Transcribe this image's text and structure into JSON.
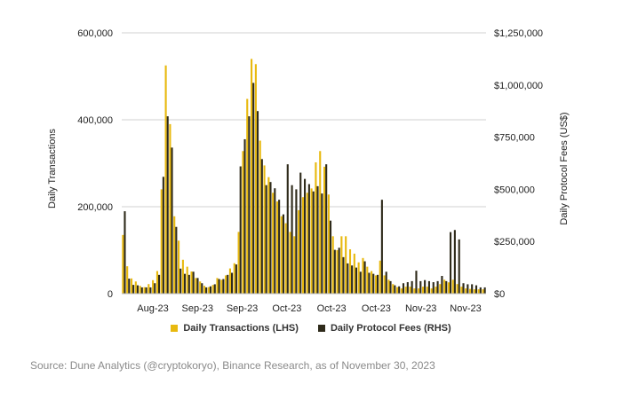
{
  "chart_data": {
    "type": "bar",
    "ylabel_left": "Daily Transactions",
    "ylabel_right": "Daily Protocol Fees (US$)",
    "left_axis": {
      "min": 0,
      "max": 600000,
      "ticks": [
        "0",
        "200,000",
        "400,000",
        "600,000"
      ]
    },
    "right_axis": {
      "min": 0,
      "max": 1250000,
      "ticks": [
        "$0",
        "$250,000",
        "$500,000",
        "$750,000",
        "$1,000,000",
        "$1,250,000"
      ]
    },
    "x_tick_labels": [
      "Aug-23",
      "Sep-23",
      "Sep-23",
      "Oct-23",
      "Oct-23",
      "Oct-23",
      "Nov-23",
      "Nov-23"
    ],
    "grid": "horizontal",
    "legend_position": "bottom",
    "series": [
      {
        "name": "Daily Transactions (LHS)",
        "color": "#E8B90F",
        "values": [
          135000,
          63000,
          35000,
          28000,
          18000,
          15000,
          22000,
          31000,
          52000,
          240000,
          525000,
          390000,
          178000,
          122000,
          78000,
          62000,
          51000,
          36000,
          28000,
          18000,
          15000,
          20000,
          36000,
          32000,
          42000,
          58000,
          70000,
          142000,
          328000,
          448000,
          540000,
          528000,
          352000,
          295000,
          268000,
          232000,
          212000,
          178000,
          162000,
          142000,
          132000,
          192000,
          222000,
          232000,
          242000,
          302000,
          328000,
          292000,
          228000,
          132000,
          100000,
          132000,
          132000,
          102000,
          92000,
          72000,
          82000,
          62000,
          52000,
          42000,
          76000,
          42000,
          32000,
          22000,
          15000,
          12000,
          16000,
          16000,
          12000,
          12000,
          16000,
          16000,
          12000,
          16000,
          22000,
          32000,
          26000,
          32000,
          22000,
          16000,
          12000,
          11000,
          10000,
          10000,
          10000
        ]
      },
      {
        "name": "Daily Protocol Fees (RHS)",
        "color": "#2E2A1A",
        "values": [
          395000,
          72000,
          42000,
          40000,
          30000,
          30000,
          30000,
          50000,
          90000,
          560000,
          850000,
          700000,
          320000,
          120000,
          95000,
          90000,
          105000,
          75000,
          50000,
          30000,
          35000,
          45000,
          70000,
          70000,
          90000,
          100000,
          140000,
          610000,
          740000,
          850000,
          1010000,
          875000,
          645000,
          520000,
          535000,
          505000,
          450000,
          380000,
          620000,
          520000,
          500000,
          580000,
          550000,
          525000,
          490000,
          515000,
          480000,
          620000,
          350000,
          210000,
          220000,
          175000,
          145000,
          135000,
          125000,
          105000,
          155000,
          100000,
          95000,
          90000,
          450000,
          105000,
          60000,
          40000,
          35000,
          50000,
          55000,
          60000,
          110000,
          60000,
          65000,
          60000,
          55000,
          60000,
          85000,
          60000,
          295000,
          305000,
          260000,
          50000,
          45000,
          45000,
          40000,
          30000,
          30000
        ]
      }
    ]
  },
  "source_text": "Source: Dune Analytics (@cryptokoryo), Binance Research, as of November 30, 2023"
}
